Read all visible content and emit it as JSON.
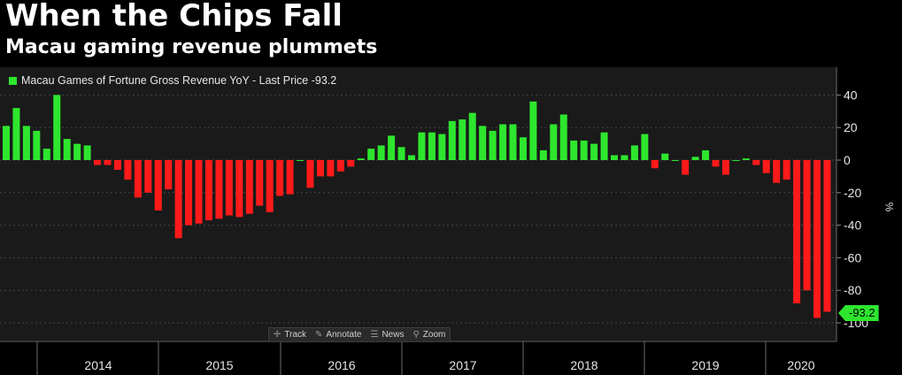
{
  "title": "When the Chips Fall",
  "subtitle": "Macau gaming revenue plummets",
  "legend": {
    "label": "Macau Games of Fortune Gross Revenue YoY - Last Price -93.2"
  },
  "last_value_label": "-93.2",
  "toolbar": [
    {
      "icon": "crosshair-icon",
      "glyph": "✛",
      "label": "Track"
    },
    {
      "icon": "pencil-icon",
      "glyph": "✎",
      "label": "Annotate"
    },
    {
      "icon": "news-icon",
      "glyph": "☰",
      "label": "News"
    },
    {
      "icon": "magnifier-icon",
      "glyph": "⚲",
      "label": "Zoom"
    }
  ],
  "colors": {
    "positive": "#2ee62e",
    "negative": "#ff1a1a",
    "background": "#000000",
    "plot_bg": "#1a1a1a"
  },
  "chart_data": {
    "type": "bar",
    "title": "When the Chips Fall",
    "subtitle": "Macau gaming revenue plummets",
    "ylabel": "%",
    "ylim": [
      -110,
      57
    ],
    "yticks": [
      40,
      20,
      0,
      -20,
      -40,
      -60,
      -80,
      -100
    ],
    "year_labels": [
      "2014",
      "2015",
      "2016",
      "2017",
      "2018",
      "2019",
      "2020"
    ],
    "grid": true,
    "legend_position": "top-left",
    "series": [
      {
        "name": "Macau Games of Fortune Gross Revenue YoY",
        "last_price": -93.2,
        "values": [
          21,
          32,
          21,
          18,
          7,
          40,
          13,
          10,
          9,
          -3,
          -3,
          -6,
          -12,
          -23,
          -20,
          -31,
          -18,
          -48,
          -40,
          -39,
          -37,
          -36,
          -34,
          -35,
          -33,
          -28,
          -32,
          -22,
          -21,
          0,
          -17,
          -10,
          -10,
          -7,
          -4,
          1,
          7,
          9,
          15,
          8,
          3,
          17,
          17,
          16,
          24,
          25,
          29,
          21,
          18,
          22,
          22,
          14,
          36,
          6,
          22,
          28,
          12,
          12,
          10,
          17,
          3,
          3,
          9,
          16,
          -5,
          4,
          0,
          -9,
          2,
          6,
          -4,
          -9,
          0,
          1,
          -3,
          -8,
          -14,
          -12,
          -88,
          -80,
          -97,
          -93.2
        ]
      }
    ]
  }
}
